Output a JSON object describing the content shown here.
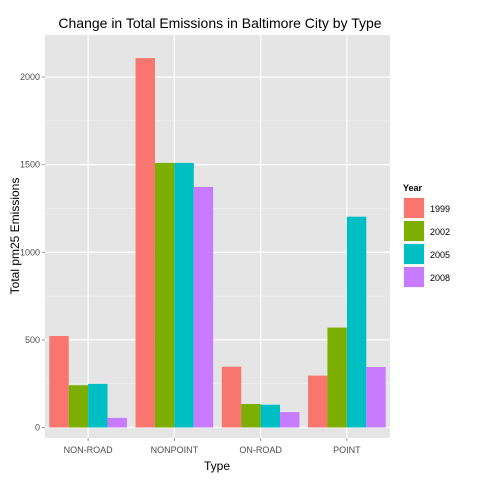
{
  "chart_data": {
    "type": "bar",
    "title": "Change in Total Emissions in Baltimore City by Type",
    "xlabel": "Type",
    "ylabel": "Total pm25 Emissions",
    "categories": [
      "NON-ROAD",
      "NONPOINT",
      "ON-ROAD",
      "POINT"
    ],
    "ylim": [
      -60,
      2240
    ],
    "yticks": [
      0,
      500,
      1000,
      1500,
      2000
    ],
    "grid": true,
    "legend": {
      "title": "Year",
      "position": "right"
    },
    "series": [
      {
        "name": "1999",
        "color": "#F8766D",
        "values": [
          522,
          2108,
          347,
          296
        ]
      },
      {
        "name": "2002",
        "color": "#7CAE00",
        "values": [
          241,
          1510,
          134,
          570
        ]
      },
      {
        "name": "2005",
        "color": "#00BFC4",
        "values": [
          249,
          1510,
          130,
          1203
        ]
      },
      {
        "name": "2008",
        "color": "#C77CFF",
        "values": [
          55,
          1373,
          88,
          345
        ]
      }
    ]
  }
}
